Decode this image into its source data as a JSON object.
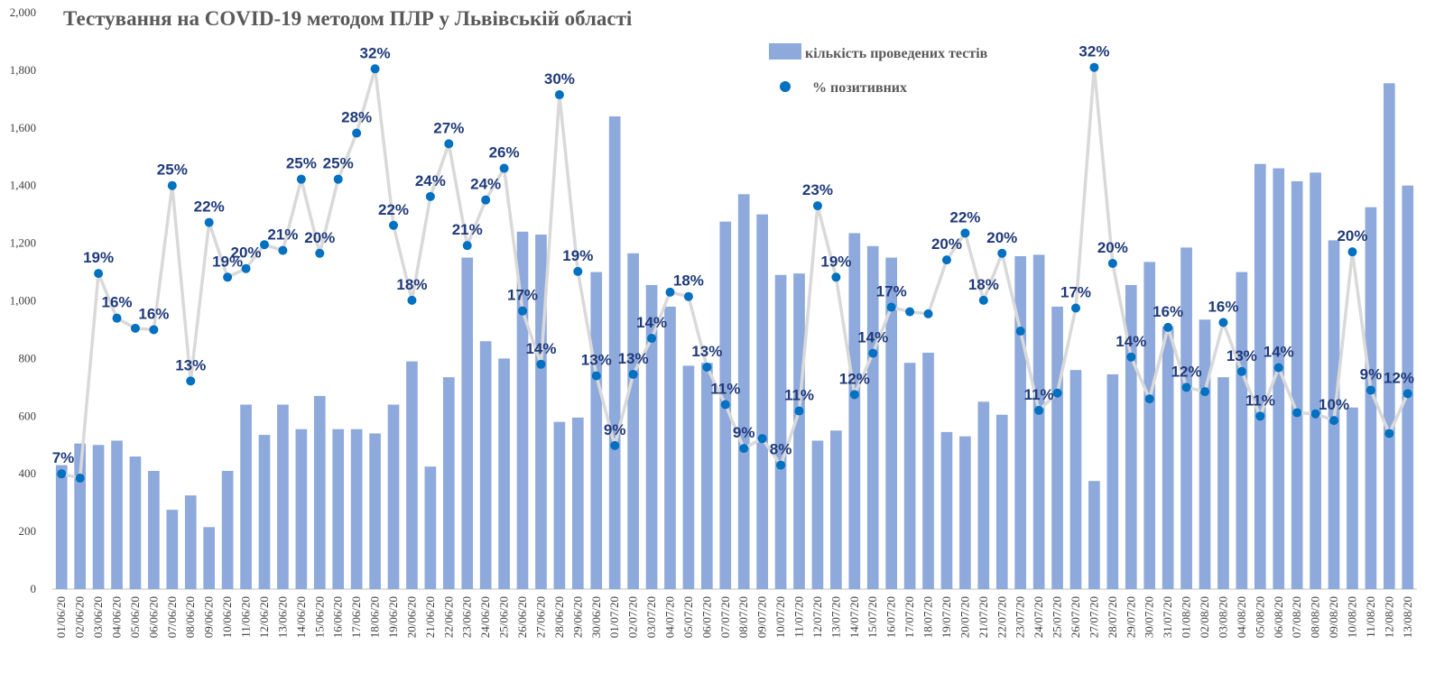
{
  "chart_data": {
    "type": "bar+scatter",
    "title": "Тестування на COVID-19 методом ПЛР у Львівській області",
    "ylim": [
      0,
      2000
    ],
    "y_ticks": [
      "0",
      "200",
      "400",
      "600",
      "800",
      "1,000",
      "1,200",
      "1,400",
      "1,600",
      "1,800",
      "2,000"
    ],
    "y_tick_values": [
      0,
      200,
      400,
      600,
      800,
      1000,
      1200,
      1400,
      1600,
      1800,
      2000
    ],
    "categories": [
      "01/06/20",
      "02/06/20",
      "03/06/20",
      "04/06/20",
      "05/06/20",
      "06/06/20",
      "07/06/20",
      "08/06/20",
      "09/06/20",
      "10/06/20",
      "11/06/20",
      "12/06/20",
      "13/06/20",
      "14/06/20",
      "15/06/20",
      "16/06/20",
      "17/06/20",
      "18/06/20",
      "19/06/20",
      "20/06/20",
      "21/06/20",
      "22/06/20",
      "23/06/20",
      "24/06/20",
      "25/06/20",
      "26/06/20",
      "27/06/20",
      "28/06/20",
      "29/06/20",
      "30/06/20",
      "01/07/20",
      "02/07/20",
      "03/07/20",
      "04/07/20",
      "05/07/20",
      "06/07/20",
      "07/07/20",
      "08/07/20",
      "09/07/20",
      "10/07/20",
      "11/07/20",
      "12/07/20",
      "13/07/20",
      "14/07/20",
      "15/07/20",
      "16/07/20",
      "17/07/20",
      "18/07/20",
      "19/07/20",
      "20/07/20",
      "21/07/20",
      "22/07/20",
      "23/07/20",
      "24/07/20",
      "25/07/20",
      "26/07/20",
      "27/07/20",
      "28/07/20",
      "29/07/20",
      "30/07/20",
      "31/07/20",
      "01/08/20",
      "02/08/20",
      "03/08/20",
      "04/08/20",
      "05/08/20",
      "06/08/20",
      "07/08/20",
      "08/08/20",
      "09/08/20",
      "10/08/20",
      "11/08/20",
      "12/08/20",
      "13/08/20"
    ],
    "series": [
      {
        "name": "кількість проведених тестів",
        "kind": "bar",
        "color": "#8ea9db",
        "values": [
          430,
          505,
          500,
          515,
          460,
          410,
          275,
          325,
          215,
          410,
          640,
          535,
          640,
          555,
          670,
          555,
          555,
          540,
          640,
          790,
          425,
          735,
          1150,
          860,
          800,
          1240,
          1230,
          580,
          595,
          1100,
          1640,
          1165,
          1055,
          980,
          775,
          785,
          1275,
          1370,
          1300,
          1090,
          1095,
          515,
          550,
          1235,
          1190,
          1150,
          785,
          820,
          545,
          530,
          650,
          605,
          1155,
          1160,
          980,
          760,
          375,
          745,
          1055,
          1135,
          910,
          1185,
          935,
          735,
          1100,
          1475,
          1460,
          1415,
          1445,
          1210,
          630,
          1325,
          1755,
          1400
        ]
      },
      {
        "name": "% позитивних",
        "kind": "scatter",
        "color": "#0070c0",
        "line_color": "#d9d9d9",
        "y_positions": [
          400,
          385,
          1095,
          940,
          905,
          900,
          1400,
          722,
          1272,
          1082,
          1112,
          1195,
          1175,
          1422,
          1165,
          1422,
          1582,
          1805,
          1262,
          1002,
          1362,
          1545,
          1192,
          1350,
          1460,
          965,
          780,
          1715,
          1102,
          740,
          498,
          745,
          870,
          1030,
          1015,
          770,
          640,
          488,
          522,
          430,
          618,
          1330,
          1082,
          675,
          818,
          978,
          962,
          955,
          1142,
          1235,
          1002,
          1165,
          895,
          620,
          680,
          975,
          1810,
          1130,
          805,
          660,
          908,
          700,
          685,
          925,
          755,
          600,
          768,
          612,
          608,
          585,
          1170,
          690,
          540,
          678
        ],
        "labels": [
          "7%",
          "",
          "19%",
          "16%",
          "",
          "16%",
          "25%",
          "13%",
          "22%",
          "19%",
          "20%",
          "",
          "21%",
          "25%",
          "20%",
          "25%",
          "28%",
          "32%",
          "22%",
          "18%",
          "24%",
          "27%",
          "21%",
          "24%",
          "26%",
          "17%",
          "14%",
          "30%",
          "19%",
          "13%",
          "9%",
          "13%",
          "14%",
          "",
          "18%",
          "13%",
          "11%",
          "9%",
          "",
          "8%",
          "11%",
          "23%",
          "19%",
          "12%",
          "14%",
          "17%",
          "",
          "",
          "20%",
          "22%",
          "18%",
          "20%",
          "",
          "11%",
          "",
          "17%",
          "32%",
          "20%",
          "14%",
          "",
          "16%",
          "12%",
          "",
          "16%",
          "13%",
          "11%",
          "14%",
          "",
          "",
          "10%",
          "20%",
          "9%",
          "",
          "12%"
        ]
      }
    ],
    "legend": [
      {
        "label": "кількість проведених тестів",
        "kind": "bar"
      },
      {
        "label": "% позитивних",
        "kind": "dot"
      }
    ],
    "legend_position": "top-right",
    "grid": false
  }
}
